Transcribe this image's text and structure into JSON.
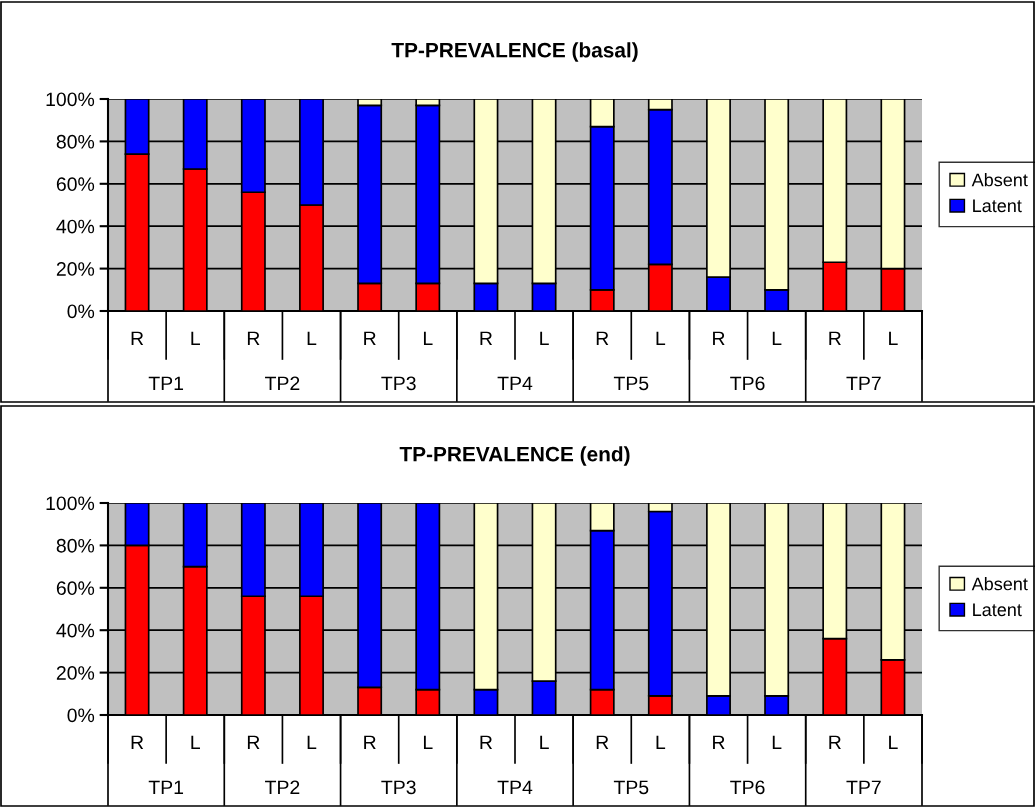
{
  "chart_data": [
    {
      "type": "bar",
      "title": "TP-PREVALENCE (basal)",
      "stacked": true,
      "categories": [
        "R",
        "L",
        "R",
        "L",
        "R",
        "L",
        "R",
        "L",
        "R",
        "L",
        "R",
        "L",
        "R",
        "L"
      ],
      "series": [
        {
          "color": "#ff0000",
          "values": [
            74,
            67,
            56,
            50,
            13,
            13,
            0,
            0,
            10,
            22,
            0,
            0,
            23,
            20
          ]
        },
        {
          "name": "Latent",
          "color": "#0000ff",
          "values": [
            26,
            33,
            44,
            50,
            84,
            84,
            13,
            13,
            77,
            73,
            16,
            10,
            0,
            0
          ]
        },
        {
          "name": "Absent",
          "color": "#ffffcc",
          "values": [
            0,
            0,
            0,
            0,
            3,
            3,
            87,
            87,
            13,
            5,
            84,
            90,
            77,
            80
          ]
        }
      ],
      "annotations": [
        "TP1",
        "TP2",
        "TP3",
        "TP4",
        "TP5",
        "TP6",
        "TP7"
      ],
      "ylim": [
        0,
        100
      ],
      "yticks": [
        {
          "value": 0,
          "label": "0%"
        },
        {
          "value": 20,
          "label": "20%"
        },
        {
          "value": 40,
          "label": "40%"
        },
        {
          "value": 60,
          "label": "60%"
        },
        {
          "value": 80,
          "label": "80%"
        },
        {
          "value": 100,
          "label": "100%"
        }
      ],
      "grid": "y",
      "legend": "right"
    },
    {
      "type": "bar",
      "title": "TP-PREVALENCE (end)",
      "stacked": true,
      "categories": [
        "R",
        "L",
        "R",
        "L",
        "R",
        "L",
        "R",
        "L",
        "R",
        "L",
        "R",
        "L",
        "R",
        "L"
      ],
      "series": [
        {
          "color": "#ff0000",
          "values": [
            80,
            70,
            56,
            56,
            13,
            12,
            0,
            0,
            12,
            9,
            0,
            0,
            36,
            26
          ]
        },
        {
          "name": "Latent",
          "color": "#0000ff",
          "values": [
            20,
            30,
            44,
            44,
            87,
            88,
            12,
            16,
            75,
            87,
            9,
            9,
            0,
            0
          ]
        },
        {
          "name": "Absent",
          "color": "#ffffcc",
          "values": [
            0,
            0,
            0,
            0,
            0,
            0,
            88,
            84,
            13,
            4,
            91,
            91,
            64,
            74
          ]
        }
      ],
      "annotations": [
        "TP1",
        "TP2",
        "TP3",
        "TP4",
        "TP5",
        "TP6",
        "TP7"
      ],
      "ylim": [
        0,
        100
      ],
      "yticks": [
        {
          "value": 0,
          "label": "0%"
        },
        {
          "value": 20,
          "label": "20%"
        },
        {
          "value": 40,
          "label": "40%"
        },
        {
          "value": 60,
          "label": "60%"
        },
        {
          "value": 80,
          "label": "80%"
        },
        {
          "value": 100,
          "label": "100%"
        }
      ],
      "grid": "y",
      "legend": "right"
    }
  ]
}
